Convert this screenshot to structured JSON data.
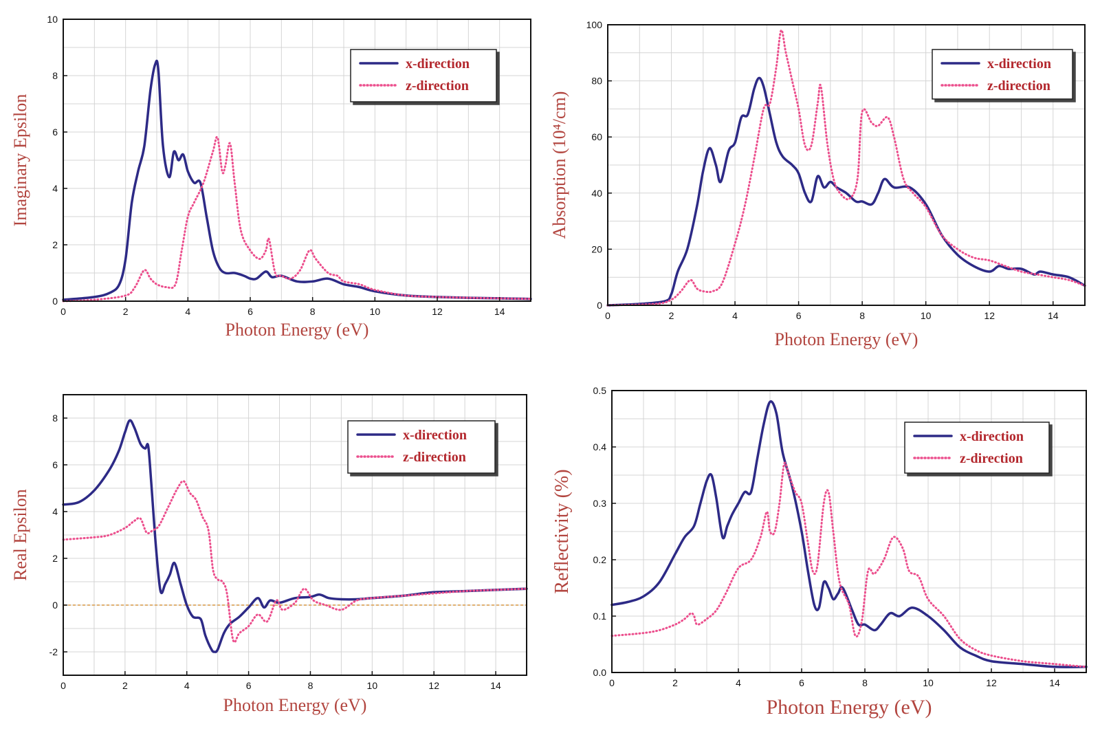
{
  "colors": {
    "x_series": "#2d2a86",
    "z_series": "#ec4f8d",
    "zero_line": "#e0b070",
    "axis_title": "#b2453f",
    "grid": "#d4d4d4"
  },
  "chart_data": [
    {
      "id": "imag",
      "type": "line",
      "xlabel": "Photon Energy (eV)",
      "ylabel": "Imaginary Epsilon",
      "xlim": [
        0,
        15
      ],
      "ylim": [
        0,
        10
      ],
      "xticks": [
        0,
        2,
        4,
        6,
        8,
        10,
        12,
        14
      ],
      "yticks": [
        0,
        2,
        4,
        6,
        8,
        10
      ],
      "grid": true,
      "legend_position": "top-right",
      "series": [
        {
          "name": "x-direction",
          "style": "solid",
          "x": [
            0,
            1,
            1.5,
            1.8,
            2.0,
            2.2,
            2.4,
            2.6,
            2.8,
            2.95,
            3.05,
            3.2,
            3.4,
            3.55,
            3.7,
            3.85,
            4.0,
            4.2,
            4.4,
            4.6,
            4.8,
            5.0,
            5.2,
            5.5,
            5.8,
            6.0,
            6.2,
            6.5,
            6.7,
            7.0,
            7.5,
            8.0,
            8.5,
            9.0,
            9.5,
            10,
            11,
            12,
            13,
            14,
            15
          ],
          "y": [
            0.05,
            0.15,
            0.3,
            0.6,
            1.5,
            3.5,
            4.6,
            5.5,
            7.5,
            8.4,
            8.2,
            5.5,
            4.4,
            5.3,
            5.0,
            5.2,
            4.6,
            4.2,
            4.2,
            3.0,
            1.8,
            1.2,
            1.0,
            1.0,
            0.9,
            0.8,
            0.8,
            1.05,
            0.85,
            0.9,
            0.7,
            0.7,
            0.8,
            0.6,
            0.5,
            0.35,
            0.2,
            0.15,
            0.12,
            0.1,
            0.08
          ]
        },
        {
          "name": "z-direction",
          "style": "dotted",
          "x": [
            0,
            1,
            2.0,
            2.3,
            2.6,
            2.8,
            3.0,
            3.3,
            3.6,
            3.8,
            4.0,
            4.2,
            4.5,
            4.8,
            4.95,
            5.1,
            5.2,
            5.35,
            5.5,
            5.7,
            6.0,
            6.3,
            6.5,
            6.6,
            6.8,
            7.0,
            7.3,
            7.6,
            7.9,
            8.1,
            8.5,
            8.8,
            9.0,
            9.5,
            10,
            11,
            12,
            13,
            14,
            15
          ],
          "y": [
            0.0,
            0.05,
            0.2,
            0.5,
            1.1,
            0.8,
            0.6,
            0.5,
            0.6,
            1.8,
            3.0,
            3.5,
            4.2,
            5.3,
            5.8,
            4.6,
            4.8,
            5.6,
            4.2,
            2.5,
            1.8,
            1.5,
            1.8,
            2.2,
            1.0,
            0.9,
            0.8,
            1.1,
            1.8,
            1.5,
            1.0,
            0.9,
            0.7,
            0.6,
            0.4,
            0.2,
            0.15,
            0.12,
            0.1,
            0.08
          ]
        }
      ]
    },
    {
      "id": "absorp",
      "type": "line",
      "xlabel": "Photon Energy (eV)",
      "ylabel": "Absorption (10⁴/cm)",
      "xlim": [
        0,
        15
      ],
      "ylim": [
        0,
        100
      ],
      "xticks": [
        0,
        2,
        4,
        6,
        8,
        10,
        12,
        14
      ],
      "yticks": [
        0,
        20,
        40,
        60,
        80,
        100
      ],
      "grid": true,
      "legend_position": "top-right",
      "series": [
        {
          "name": "x-direction",
          "style": "solid",
          "x": [
            0,
            1,
            1.8,
            2.0,
            2.2,
            2.5,
            2.8,
            3.0,
            3.2,
            3.4,
            3.55,
            3.8,
            4.0,
            4.2,
            4.4,
            4.6,
            4.75,
            4.9,
            5.1,
            5.3,
            5.5,
            5.8,
            6.0,
            6.2,
            6.4,
            6.6,
            6.8,
            7.0,
            7.2,
            7.5,
            7.8,
            8.0,
            8.3,
            8.5,
            8.7,
            9.0,
            9.5,
            10,
            10.5,
            11,
            11.5,
            12,
            12.3,
            12.6,
            13,
            13.4,
            13.6,
            14,
            14.5,
            15
          ],
          "y": [
            0,
            0.5,
            1.5,
            4,
            12,
            20,
            35,
            48,
            56,
            50,
            44,
            55,
            58,
            67,
            68,
            77,
            81,
            78,
            68,
            58,
            53,
            50,
            47,
            40,
            37,
            46,
            42,
            44,
            42,
            40,
            37,
            37,
            36,
            40,
            45,
            42,
            42,
            36,
            25,
            18,
            14,
            12,
            14,
            13,
            13,
            11,
            12,
            11,
            10,
            7
          ]
        },
        {
          "name": "z-direction",
          "style": "dotted",
          "x": [
            0,
            1.5,
            2.0,
            2.3,
            2.6,
            2.8,
            3.0,
            3.3,
            3.6,
            4.0,
            4.3,
            4.6,
            4.9,
            5.1,
            5.3,
            5.45,
            5.6,
            5.8,
            6.0,
            6.2,
            6.4,
            6.6,
            6.7,
            6.9,
            7.1,
            7.3,
            7.6,
            7.85,
            8.0,
            8.3,
            8.5,
            8.8,
            9.0,
            9.3,
            9.6,
            10,
            10.5,
            11,
            11.5,
            12,
            12.5,
            13,
            13.5,
            14,
            14.5,
            15
          ],
          "y": [
            0,
            0.5,
            2,
            5,
            9,
            6,
            5,
            5,
            8,
            22,
            35,
            52,
            70,
            72,
            85,
            98,
            90,
            80,
            70,
            57,
            57,
            72,
            78,
            58,
            45,
            40,
            38,
            45,
            69,
            65,
            64,
            67,
            60,
            45,
            40,
            35,
            25,
            20,
            17,
            16,
            14,
            12,
            11,
            10,
            9,
            7
          ]
        }
      ]
    },
    {
      "id": "real",
      "type": "line",
      "xlabel": "Photon Energy (eV)",
      "ylabel": "Real Epsilon",
      "xlim": [
        0,
        15
      ],
      "ylim": [
        -3,
        9
      ],
      "xticks": [
        0,
        2,
        4,
        6,
        8,
        10,
        12,
        14
      ],
      "yticks": [
        -2,
        0,
        2,
        4,
        6,
        8
      ],
      "grid": true,
      "legend_position": "top-right",
      "series": [
        {
          "name": "x-direction",
          "style": "solid",
          "x": [
            0,
            0.5,
            1.0,
            1.5,
            1.8,
            2.0,
            2.15,
            2.3,
            2.5,
            2.65,
            2.75,
            2.85,
            3.0,
            3.15,
            3.3,
            3.45,
            3.6,
            3.8,
            4.0,
            4.2,
            4.45,
            4.6,
            4.8,
            4.9,
            5.0,
            5.2,
            5.4,
            5.7,
            6.0,
            6.3,
            6.5,
            6.7,
            7.0,
            7.5,
            8.0,
            8.3,
            8.6,
            9.0,
            9.5,
            10,
            11,
            12,
            13,
            14,
            15
          ],
          "y": [
            4.3,
            4.4,
            4.9,
            5.8,
            6.6,
            7.4,
            7.9,
            7.6,
            6.9,
            6.7,
            6.8,
            5.2,
            2.5,
            0.6,
            0.9,
            1.3,
            1.8,
            0.9,
            0.0,
            -0.5,
            -0.6,
            -1.3,
            -1.9,
            -2.0,
            -1.9,
            -1.2,
            -0.8,
            -0.5,
            -0.1,
            0.3,
            -0.1,
            0.2,
            0.1,
            0.3,
            0.35,
            0.45,
            0.3,
            0.25,
            0.25,
            0.3,
            0.4,
            0.55,
            0.6,
            0.65,
            0.7
          ]
        },
        {
          "name": "z-direction",
          "style": "dotted",
          "x": [
            0,
            1.0,
            1.5,
            2.0,
            2.3,
            2.5,
            2.7,
            2.9,
            3.1,
            3.4,
            3.7,
            3.9,
            4.1,
            4.3,
            4.5,
            4.7,
            4.85,
            5.0,
            5.15,
            5.3,
            5.5,
            5.7,
            6.0,
            6.3,
            6.6,
            6.9,
            7.1,
            7.5,
            7.8,
            8.1,
            8.5,
            9.0,
            9.5,
            10,
            11,
            12,
            13,
            14,
            15
          ],
          "y": [
            2.8,
            2.9,
            3.0,
            3.3,
            3.6,
            3.7,
            3.1,
            3.2,
            3.4,
            4.2,
            5.0,
            5.3,
            4.8,
            4.5,
            3.8,
            3.2,
            1.5,
            1.1,
            1.0,
            0.5,
            -1.5,
            -1.2,
            -0.9,
            -0.4,
            -0.7,
            0.2,
            -0.2,
            0.1,
            0.7,
            0.2,
            0.0,
            -0.2,
            0.2,
            0.3,
            0.4,
            0.5,
            0.6,
            0.65,
            0.7
          ]
        }
      ]
    },
    {
      "id": "refl",
      "type": "line",
      "xlabel": "Photon Energy (eV)",
      "ylabel": "Reflectivity (%)",
      "xlim": [
        0,
        15
      ],
      "ylim": [
        0,
        0.5
      ],
      "xticks": [
        0,
        2,
        4,
        6,
        8,
        10,
        12,
        14
      ],
      "yticks": [
        0.0,
        0.1,
        0.2,
        0.3,
        0.4,
        0.5
      ],
      "grid": true,
      "legend_position": "top-right",
      "series": [
        {
          "name": "x-direction",
          "style": "solid",
          "x": [
            0,
            0.5,
            1.0,
            1.5,
            2.0,
            2.3,
            2.6,
            2.8,
            3.0,
            3.15,
            3.3,
            3.5,
            3.65,
            3.8,
            4.0,
            4.2,
            4.4,
            4.6,
            4.8,
            5.0,
            5.2,
            5.4,
            5.7,
            6.0,
            6.2,
            6.4,
            6.55,
            6.7,
            6.85,
            7.0,
            7.15,
            7.3,
            7.6,
            7.8,
            8.0,
            8.3,
            8.5,
            8.8,
            9.1,
            9.5,
            10,
            10.5,
            11,
            11.5,
            12,
            13,
            14,
            15
          ],
          "y": [
            0.12,
            0.125,
            0.135,
            0.16,
            0.21,
            0.24,
            0.26,
            0.3,
            0.34,
            0.35,
            0.31,
            0.24,
            0.26,
            0.28,
            0.3,
            0.32,
            0.32,
            0.38,
            0.44,
            0.48,
            0.46,
            0.39,
            0.33,
            0.25,
            0.18,
            0.12,
            0.115,
            0.16,
            0.15,
            0.13,
            0.14,
            0.15,
            0.11,
            0.085,
            0.085,
            0.075,
            0.085,
            0.105,
            0.1,
            0.115,
            0.1,
            0.075,
            0.045,
            0.03,
            0.02,
            0.015,
            0.01,
            0.01
          ]
        },
        {
          "name": "z-direction",
          "style": "dotted",
          "x": [
            0,
            1.0,
            1.5,
            2.0,
            2.3,
            2.5,
            2.6,
            2.7,
            3.0,
            3.3,
            3.6,
            4.0,
            4.4,
            4.7,
            4.9,
            5.0,
            5.15,
            5.3,
            5.45,
            5.6,
            5.8,
            6.0,
            6.2,
            6.35,
            6.5,
            6.7,
            6.85,
            7.0,
            7.2,
            7.5,
            7.7,
            7.9,
            8.1,
            8.3,
            8.6,
            8.9,
            9.2,
            9.4,
            9.7,
            10,
            10.5,
            11,
            11.5,
            12,
            13,
            14,
            15
          ],
          "y": [
            0.065,
            0.07,
            0.075,
            0.085,
            0.095,
            0.105,
            0.1,
            0.085,
            0.095,
            0.11,
            0.14,
            0.185,
            0.2,
            0.24,
            0.285,
            0.25,
            0.25,
            0.3,
            0.37,
            0.35,
            0.32,
            0.3,
            0.23,
            0.18,
            0.19,
            0.3,
            0.32,
            0.25,
            0.16,
            0.12,
            0.065,
            0.09,
            0.18,
            0.175,
            0.2,
            0.24,
            0.22,
            0.18,
            0.17,
            0.13,
            0.1,
            0.06,
            0.04,
            0.03,
            0.02,
            0.015,
            0.01
          ]
        }
      ]
    }
  ]
}
